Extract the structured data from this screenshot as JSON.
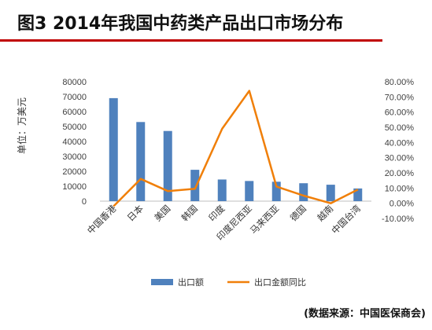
{
  "figure": {
    "title": "图3  2014年我国中药类产品出口市场分布",
    "source": "(数据来源：中国医保商会)"
  },
  "colors": {
    "bar": "#4f81bd",
    "line": "#f07f09",
    "rule": "#c00000"
  },
  "chart_data": {
    "type": "bar",
    "categories": [
      "中国香港",
      "日本",
      "美国",
      "韩国",
      "印度",
      "印度尼西亚",
      "马来西亚",
      "德国",
      "越南",
      "中国台湾"
    ],
    "ylabel": "单位：万美元",
    "ylim": [
      0,
      80000
    ],
    "yticks": [
      "0",
      "10000",
      "20000",
      "30000",
      "40000",
      "50000",
      "60000",
      "70000",
      "80000"
    ],
    "y2lim": [
      -10,
      80
    ],
    "y2ticks": [
      "-10.00%",
      "0.00%",
      "10.00%",
      "20.00%",
      "30.00%",
      "40.00%",
      "50.00%",
      "60.00%",
      "70.00%",
      "80.00%"
    ],
    "grid": false,
    "legend_position": "bottom",
    "series": [
      {
        "name": "出口额",
        "type": "bar",
        "axis": "left",
        "values": [
          69000,
          53000,
          47000,
          21000,
          14500,
          13500,
          13000,
          12000,
          11000,
          8500
        ]
      },
      {
        "name": "出口金额同比",
        "type": "line",
        "axis": "right",
        "values": [
          -2,
          16,
          8,
          9.5,
          49,
          74,
          11,
          5,
          0,
          9
        ]
      }
    ]
  }
}
